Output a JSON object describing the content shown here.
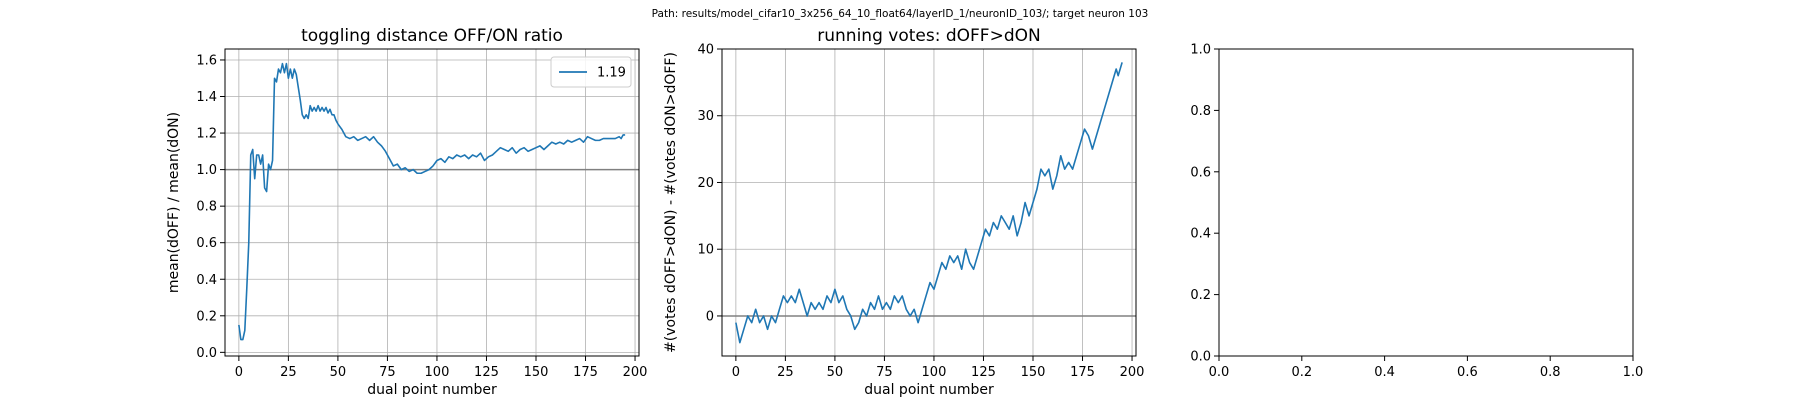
{
  "figure": {
    "suptitle": "Path: results/model_cifar10_3x256_64_10_float64/layerID_1/neuronID_103/; target neuron 103"
  },
  "chart_data": [
    {
      "type": "line",
      "title": "toggling distance OFF/ON ratio",
      "xlabel": "dual point number",
      "ylabel": "mean(dOFF) / mean(dON)",
      "xlim": [
        -7,
        202
      ],
      "ylim": [
        -0.02,
        1.66
      ],
      "xticks": [
        0,
        25,
        50,
        75,
        100,
        125,
        150,
        175,
        200
      ],
      "yticks": [
        0.0,
        0.2,
        0.4,
        0.6,
        0.8,
        1.0,
        1.2,
        1.4,
        1.6
      ],
      "grid": true,
      "reference_line": 1.0,
      "legend": {
        "position": "top-right",
        "entries": [
          "1.19"
        ]
      },
      "series": [
        {
          "name": "1.19",
          "color": "#1f77b4",
          "points": [
            [
              0,
              0.15
            ],
            [
              1,
              0.07
            ],
            [
              2,
              0.07
            ],
            [
              3,
              0.12
            ],
            [
              4,
              0.35
            ],
            [
              5,
              0.6
            ],
            [
              6,
              1.08
            ],
            [
              7,
              1.11
            ],
            [
              8,
              0.95
            ],
            [
              9,
              1.08
            ],
            [
              10,
              1.08
            ],
            [
              11,
              1.03
            ],
            [
              12,
              1.08
            ],
            [
              13,
              0.9
            ],
            [
              14,
              0.88
            ],
            [
              15,
              1.03
            ],
            [
              16,
              1.0
            ],
            [
              17,
              1.05
            ],
            [
              18,
              1.5
            ],
            [
              19,
              1.48
            ],
            [
              20,
              1.55
            ],
            [
              21,
              1.53
            ],
            [
              22,
              1.58
            ],
            [
              23,
              1.53
            ],
            [
              24,
              1.58
            ],
            [
              25,
              1.5
            ],
            [
              26,
              1.55
            ],
            [
              27,
              1.5
            ],
            [
              28,
              1.55
            ],
            [
              29,
              1.52
            ],
            [
              30,
              1.45
            ],
            [
              31,
              1.38
            ],
            [
              32,
              1.3
            ],
            [
              33,
              1.28
            ],
            [
              34,
              1.3
            ],
            [
              35,
              1.28
            ],
            [
              36,
              1.35
            ],
            [
              37,
              1.32
            ],
            [
              38,
              1.34
            ],
            [
              39,
              1.32
            ],
            [
              40,
              1.35
            ],
            [
              41,
              1.32
            ],
            [
              42,
              1.34
            ],
            [
              43,
              1.32
            ],
            [
              44,
              1.34
            ],
            [
              45,
              1.31
            ],
            [
              46,
              1.33
            ],
            [
              47,
              1.3
            ],
            [
              48,
              1.3
            ],
            [
              49,
              1.27
            ],
            [
              50,
              1.25
            ],
            [
              52,
              1.22
            ],
            [
              54,
              1.18
            ],
            [
              56,
              1.17
            ],
            [
              58,
              1.18
            ],
            [
              60,
              1.16
            ],
            [
              62,
              1.17
            ],
            [
              64,
              1.18
            ],
            [
              66,
              1.16
            ],
            [
              68,
              1.18
            ],
            [
              70,
              1.15
            ],
            [
              72,
              1.13
            ],
            [
              74,
              1.1
            ],
            [
              76,
              1.06
            ],
            [
              78,
              1.02
            ],
            [
              80,
              1.03
            ],
            [
              82,
              1.0
            ],
            [
              84,
              1.01
            ],
            [
              86,
              0.99
            ],
            [
              88,
              1.0
            ],
            [
              90,
              0.98
            ],
            [
              92,
              0.98
            ],
            [
              94,
              0.99
            ],
            [
              96,
              1.0
            ],
            [
              98,
              1.02
            ],
            [
              100,
              1.05
            ],
            [
              102,
              1.06
            ],
            [
              104,
              1.04
            ],
            [
              106,
              1.07
            ],
            [
              108,
              1.06
            ],
            [
              110,
              1.08
            ],
            [
              112,
              1.07
            ],
            [
              114,
              1.08
            ],
            [
              116,
              1.06
            ],
            [
              118,
              1.08
            ],
            [
              120,
              1.07
            ],
            [
              122,
              1.09
            ],
            [
              124,
              1.05
            ],
            [
              126,
              1.07
            ],
            [
              128,
              1.08
            ],
            [
              130,
              1.1
            ],
            [
              132,
              1.12
            ],
            [
              134,
              1.11
            ],
            [
              136,
              1.1
            ],
            [
              138,
              1.12
            ],
            [
              140,
              1.09
            ],
            [
              142,
              1.11
            ],
            [
              144,
              1.12
            ],
            [
              146,
              1.1
            ],
            [
              148,
              1.11
            ],
            [
              150,
              1.12
            ],
            [
              152,
              1.13
            ],
            [
              154,
              1.11
            ],
            [
              156,
              1.13
            ],
            [
              158,
              1.15
            ],
            [
              160,
              1.14
            ],
            [
              162,
              1.15
            ],
            [
              164,
              1.14
            ],
            [
              166,
              1.16
            ],
            [
              168,
              1.15
            ],
            [
              170,
              1.16
            ],
            [
              172,
              1.17
            ],
            [
              174,
              1.15
            ],
            [
              176,
              1.18
            ],
            [
              178,
              1.17
            ],
            [
              180,
              1.16
            ],
            [
              182,
              1.16
            ],
            [
              184,
              1.17
            ],
            [
              186,
              1.17
            ],
            [
              188,
              1.17
            ],
            [
              190,
              1.17
            ],
            [
              192,
              1.18
            ],
            [
              193,
              1.17
            ],
            [
              194,
              1.19
            ],
            [
              195,
              1.19
            ]
          ]
        }
      ]
    },
    {
      "type": "line",
      "title": "running votes: dOFF>dON",
      "xlabel": "dual point number",
      "ylabel": "#(votes dOFF>dON) - #(votes dON>dOFF)",
      "xlim": [
        -7,
        202
      ],
      "ylim": [
        -6,
        40
      ],
      "xticks": [
        0,
        25,
        50,
        75,
        100,
        125,
        150,
        175,
        200
      ],
      "yticks": [
        0,
        10,
        20,
        30,
        40
      ],
      "grid": true,
      "reference_line": 0,
      "legend": null,
      "series": [
        {
          "color": "#1f77b4",
          "points": [
            [
              0,
              -1
            ],
            [
              2,
              -4
            ],
            [
              4,
              -2
            ],
            [
              6,
              0
            ],
            [
              8,
              -1
            ],
            [
              10,
              1
            ],
            [
              12,
              -1
            ],
            [
              14,
              0
            ],
            [
              16,
              -2
            ],
            [
              18,
              0
            ],
            [
              20,
              -1
            ],
            [
              22,
              1
            ],
            [
              24,
              3
            ],
            [
              26,
              2
            ],
            [
              28,
              3
            ],
            [
              30,
              2
            ],
            [
              32,
              4
            ],
            [
              34,
              2
            ],
            [
              36,
              0
            ],
            [
              38,
              2
            ],
            [
              40,
              1
            ],
            [
              42,
              2
            ],
            [
              44,
              1
            ],
            [
              46,
              3
            ],
            [
              48,
              2
            ],
            [
              50,
              4
            ],
            [
              52,
              2
            ],
            [
              54,
              3
            ],
            [
              56,
              1
            ],
            [
              58,
              0
            ],
            [
              60,
              -2
            ],
            [
              62,
              -1
            ],
            [
              64,
              1
            ],
            [
              66,
              0
            ],
            [
              68,
              2
            ],
            [
              70,
              1
            ],
            [
              72,
              3
            ],
            [
              74,
              1
            ],
            [
              76,
              2
            ],
            [
              78,
              1
            ],
            [
              80,
              3
            ],
            [
              82,
              2
            ],
            [
              84,
              3
            ],
            [
              86,
              1
            ],
            [
              88,
              0
            ],
            [
              90,
              1
            ],
            [
              92,
              -1
            ],
            [
              94,
              1
            ],
            [
              96,
              3
            ],
            [
              98,
              5
            ],
            [
              100,
              4
            ],
            [
              102,
              6
            ],
            [
              104,
              8
            ],
            [
              106,
              7
            ],
            [
              108,
              9
            ],
            [
              110,
              8
            ],
            [
              112,
              9
            ],
            [
              114,
              7
            ],
            [
              116,
              10
            ],
            [
              118,
              8
            ],
            [
              120,
              7
            ],
            [
              122,
              9
            ],
            [
              124,
              11
            ],
            [
              126,
              13
            ],
            [
              128,
              12
            ],
            [
              130,
              14
            ],
            [
              132,
              13
            ],
            [
              134,
              15
            ],
            [
              136,
              14
            ],
            [
              138,
              13
            ],
            [
              140,
              15
            ],
            [
              142,
              12
            ],
            [
              144,
              14
            ],
            [
              146,
              17
            ],
            [
              148,
              15
            ],
            [
              150,
              17
            ],
            [
              152,
              19
            ],
            [
              154,
              22
            ],
            [
              156,
              21
            ],
            [
              158,
              22
            ],
            [
              160,
              19
            ],
            [
              162,
              21
            ],
            [
              164,
              24
            ],
            [
              166,
              22
            ],
            [
              168,
              23
            ],
            [
              170,
              22
            ],
            [
              172,
              24
            ],
            [
              174,
              26
            ],
            [
              176,
              28
            ],
            [
              178,
              27
            ],
            [
              180,
              25
            ],
            [
              182,
              27
            ],
            [
              184,
              29
            ],
            [
              186,
              31
            ],
            [
              188,
              33
            ],
            [
              190,
              35
            ],
            [
              192,
              37
            ],
            [
              193,
              36
            ],
            [
              195,
              38
            ]
          ]
        }
      ]
    },
    {
      "type": "line",
      "title": "",
      "xlabel": "",
      "ylabel": "",
      "xlim": [
        0,
        1
      ],
      "ylim": [
        0,
        1
      ],
      "xticks": [
        0.0,
        0.2,
        0.4,
        0.6,
        0.8,
        1.0
      ],
      "yticks": [
        0.0,
        0.2,
        0.4,
        0.6,
        0.8,
        1.0
      ],
      "grid": false,
      "legend": null,
      "series": []
    }
  ],
  "colors": {
    "line": "#1f77b4",
    "grid": "#b0b0b0",
    "reference": "#808080"
  }
}
